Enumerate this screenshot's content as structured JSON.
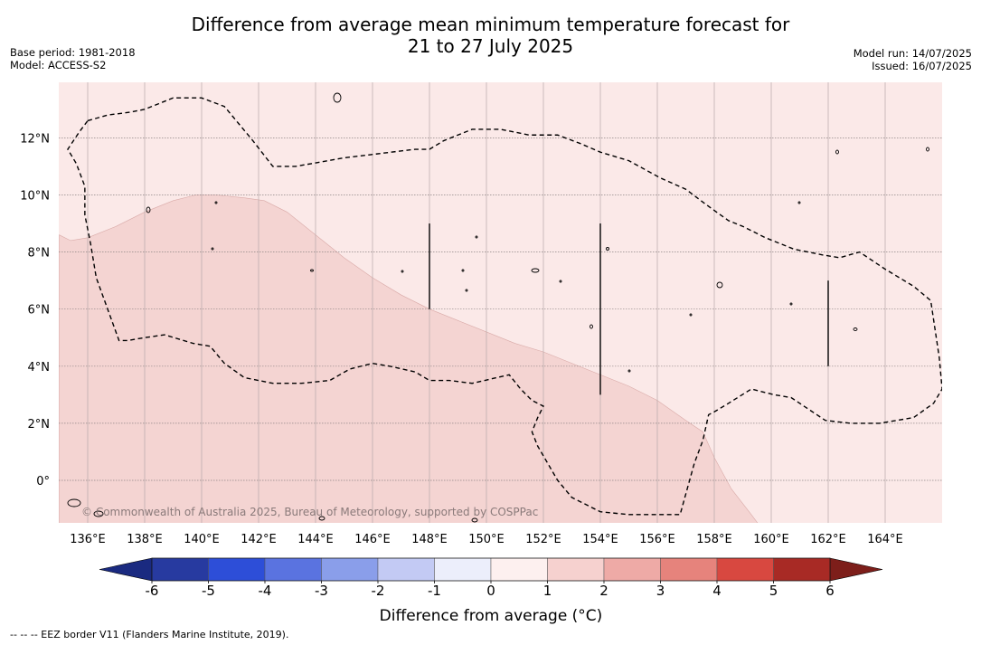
{
  "title": {
    "line1": "Difference from average mean minimum temperature forecast for",
    "line2": "21 to 27 July 2025"
  },
  "meta_left": {
    "base_period": "Base period: 1981-2018",
    "model": "Model: ACCESS-S2"
  },
  "meta_right": {
    "model_run": "Model run: 14/07/2025",
    "issued": "Issued: 16/07/2025"
  },
  "map": {
    "lon_range": [
      135,
      166
    ],
    "lat_range": [
      -1.5,
      14
    ],
    "lon_ticks": [
      "136°E",
      "138°E",
      "140°E",
      "142°E",
      "144°E",
      "146°E",
      "148°E",
      "150°E",
      "152°E",
      "154°E",
      "156°E",
      "158°E",
      "160°E",
      "162°E",
      "164°E"
    ],
    "lat_ticks": [
      "12°N",
      "10°N",
      "8°N",
      "6°N",
      "4°N",
      "2°N",
      "0°"
    ],
    "background_color": "#fbe9e8",
    "warm_zone_color": "#f4d4d2",
    "watermark": "© Commonwealth of Australia 2025, Bureau of Meteorology, supported by COSPPac"
  },
  "colorbar": {
    "tick_labels": [
      "-6",
      "-5",
      "-4",
      "-3",
      "-2",
      "-1",
      "0",
      "1",
      "2",
      "3",
      "4",
      "5",
      "6"
    ],
    "colors": [
      "#273aa0",
      "#2d4ed8",
      "#5a73e0",
      "#8a9eea",
      "#c3caf4",
      "#eceefb",
      "#fdf0ef",
      "#f6d1cf",
      "#eeaaa6",
      "#e6837c",
      "#d84840",
      "#a82a25"
    ],
    "min_extend_color": "#1a2a80",
    "max_extend_color": "#7d1e1a",
    "label": "Difference from average (°C)"
  },
  "footnote": "--  --  -- EEZ border V11 (Flanders Marine Institute, 2019)."
}
